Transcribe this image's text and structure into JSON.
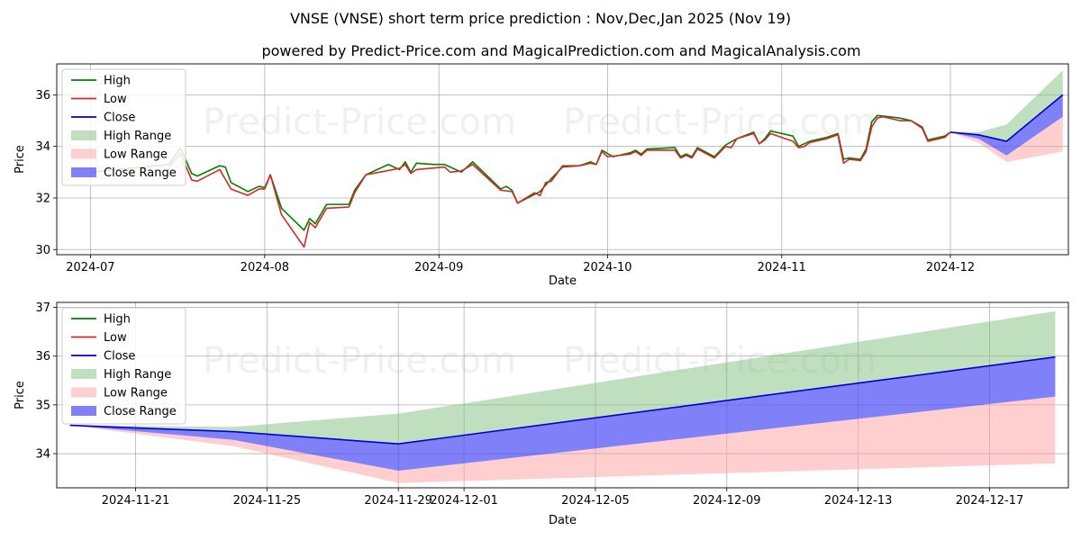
{
  "title": "VNSE (VNSE) short term price prediction : Nov,Dec,Jan 2025 (Nov 19)",
  "subtitle": "powered by Predict-Price.com and MagicalPrediction.com and MagicalAnalysis.com",
  "watermark": "Predict-Price.com",
  "colors": {
    "high": "#008000",
    "low": "#d62728",
    "close": "#0000cc",
    "high_range": "#7fbf7f",
    "low_range": "#ff9e9e",
    "close_range": "#4f4ff5",
    "grid": "#b0b0b0"
  },
  "legend": [
    {
      "key": "high",
      "label": "High",
      "kind": "line"
    },
    {
      "key": "low",
      "label": "Low",
      "kind": "line"
    },
    {
      "key": "close",
      "label": "Close",
      "kind": "line"
    },
    {
      "key": "high_range",
      "label": "High Range",
      "kind": "patch"
    },
    {
      "key": "low_range",
      "label": "Low Range",
      "kind": "patch"
    },
    {
      "key": "close_range",
      "label": "Close Range",
      "kind": "patch"
    }
  ],
  "chart_data": [
    {
      "type": "line",
      "id": "history",
      "xlabel": "Date",
      "ylabel": "Price",
      "xlim": [
        "2024-06-25",
        "2024-12-22"
      ],
      "ylim": [
        29.8,
        37.2
      ],
      "yticks": [
        30,
        32,
        34,
        36
      ],
      "xticks": [
        "2024-07-01",
        "2024-08-01",
        "2024-09-01",
        "2024-10-01",
        "2024-11-01",
        "2024-12-01"
      ],
      "xticklabels": [
        "2024-07",
        "2024-08",
        "2024-09",
        "2024-10",
        "2024-11",
        "2024-12"
      ],
      "legend_position": "upper-left",
      "series": [
        {
          "name": "High",
          "key": "high",
          "points": [
            [
              "2024-07-01",
              33.0
            ],
            [
              "2024-07-15",
              33.3
            ],
            [
              "2024-07-17",
              33.95
            ],
            [
              "2024-07-19",
              32.95
            ],
            [
              "2024-07-20",
              32.85
            ],
            [
              "2024-07-24",
              33.25
            ],
            [
              "2024-07-25",
              33.2
            ],
            [
              "2024-07-26",
              32.6
            ],
            [
              "2024-07-29",
              32.25
            ],
            [
              "2024-07-31",
              32.45
            ],
            [
              "2024-08-01",
              32.4
            ],
            [
              "2024-08-02",
              32.9
            ],
            [
              "2024-08-04",
              31.6
            ],
            [
              "2024-08-08",
              30.75
            ],
            [
              "2024-08-09",
              31.2
            ],
            [
              "2024-08-10",
              31.0
            ],
            [
              "2024-08-12",
              31.75
            ],
            [
              "2024-08-16",
              31.75
            ],
            [
              "2024-08-17",
              32.3
            ],
            [
              "2024-08-19",
              32.9
            ],
            [
              "2024-08-23",
              33.3
            ],
            [
              "2024-08-25",
              33.1
            ],
            [
              "2024-08-26",
              33.4
            ],
            [
              "2024-08-27",
              33.0
            ],
            [
              "2024-08-28",
              33.35
            ],
            [
              "2024-08-31",
              33.3
            ],
            [
              "2024-09-02",
              33.3
            ],
            [
              "2024-09-05",
              33.0
            ],
            [
              "2024-09-07",
              33.4
            ],
            [
              "2024-09-12",
              32.35
            ],
            [
              "2024-09-13",
              32.45
            ],
            [
              "2024-09-14",
              32.3
            ],
            [
              "2024-09-15",
              31.8
            ],
            [
              "2024-09-19",
              32.25
            ],
            [
              "2024-09-21",
              32.75
            ],
            [
              "2024-09-23",
              33.2
            ],
            [
              "2024-09-26",
              33.25
            ],
            [
              "2024-09-28",
              33.4
            ],
            [
              "2024-09-29",
              33.3
            ],
            [
              "2024-09-30",
              33.85
            ],
            [
              "2024-10-02",
              33.6
            ],
            [
              "2024-10-05",
              33.75
            ],
            [
              "2024-10-06",
              33.85
            ],
            [
              "2024-10-07",
              33.7
            ],
            [
              "2024-10-08",
              33.9
            ],
            [
              "2024-10-13",
              33.95
            ],
            [
              "2024-10-14",
              33.6
            ],
            [
              "2024-10-15",
              33.7
            ],
            [
              "2024-10-16",
              33.6
            ],
            [
              "2024-10-17",
              33.95
            ],
            [
              "2024-10-20",
              33.6
            ],
            [
              "2024-10-22",
              34.05
            ],
            [
              "2024-10-24",
              34.3
            ],
            [
              "2024-10-27",
              34.55
            ],
            [
              "2024-10-28",
              34.1
            ],
            [
              "2024-10-29",
              34.3
            ],
            [
              "2024-10-30",
              34.6
            ],
            [
              "2024-11-03",
              34.4
            ],
            [
              "2024-11-04",
              34.0
            ],
            [
              "2024-11-05",
              34.1
            ],
            [
              "2024-11-06",
              34.2
            ],
            [
              "2024-11-09",
              34.35
            ],
            [
              "2024-11-11",
              34.5
            ],
            [
              "2024-11-12",
              33.5
            ],
            [
              "2024-11-13",
              33.55
            ],
            [
              "2024-11-15",
              33.5
            ],
            [
              "2024-11-16",
              33.9
            ],
            [
              "2024-11-17",
              34.95
            ],
            [
              "2024-11-18",
              35.2
            ],
            [
              "2024-11-20",
              35.15
            ],
            [
              "2024-11-22",
              35.1
            ],
            [
              "2024-11-24",
              35.0
            ],
            [
              "2024-11-26",
              34.75
            ],
            [
              "2024-11-27",
              34.25
            ],
            [
              "2024-11-29",
              34.35
            ],
            [
              "2024-11-30",
              34.4
            ],
            [
              "2024-12-01",
              34.55
            ]
          ]
        },
        {
          "name": "Low",
          "key": "low",
          "points": [
            [
              "2024-07-15",
              33.2
            ],
            [
              "2024-07-17",
              33.75
            ],
            [
              "2024-07-19",
              32.7
            ],
            [
              "2024-07-20",
              32.65
            ],
            [
              "2024-07-24",
              33.1
            ],
            [
              "2024-07-26",
              32.35
            ],
            [
              "2024-07-29",
              32.1
            ],
            [
              "2024-07-31",
              32.35
            ],
            [
              "2024-08-01",
              32.35
            ],
            [
              "2024-08-02",
              32.9
            ],
            [
              "2024-08-04",
              31.35
            ],
            [
              "2024-08-08",
              30.1
            ],
            [
              "2024-08-09",
              31.05
            ],
            [
              "2024-08-10",
              30.85
            ],
            [
              "2024-08-12",
              31.6
            ],
            [
              "2024-08-16",
              31.65
            ],
            [
              "2024-08-17",
              32.2
            ],
            [
              "2024-08-19",
              32.9
            ],
            [
              "2024-08-25",
              33.15
            ],
            [
              "2024-08-26",
              33.3
            ],
            [
              "2024-08-27",
              32.95
            ],
            [
              "2024-08-28",
              33.1
            ],
            [
              "2024-09-02",
              33.2
            ],
            [
              "2024-09-03",
              33.0
            ],
            [
              "2024-09-05",
              33.05
            ],
            [
              "2024-09-07",
              33.3
            ],
            [
              "2024-09-12",
              32.3
            ],
            [
              "2024-09-14",
              32.25
            ],
            [
              "2024-09-15",
              31.8
            ],
            [
              "2024-09-18",
              32.2
            ],
            [
              "2024-09-19",
              32.1
            ],
            [
              "2024-09-20",
              32.6
            ],
            [
              "2024-09-21",
              32.65
            ],
            [
              "2024-09-23",
              33.25
            ],
            [
              "2024-09-26",
              33.25
            ],
            [
              "2024-09-28",
              33.35
            ],
            [
              "2024-09-29",
              33.3
            ],
            [
              "2024-09-30",
              33.8
            ],
            [
              "2024-10-01",
              33.6
            ],
            [
              "2024-10-05",
              33.7
            ],
            [
              "2024-10-06",
              33.8
            ],
            [
              "2024-10-07",
              33.65
            ],
            [
              "2024-10-08",
              33.85
            ],
            [
              "2024-10-13",
              33.85
            ],
            [
              "2024-10-14",
              33.55
            ],
            [
              "2024-10-15",
              33.65
            ],
            [
              "2024-10-16",
              33.55
            ],
            [
              "2024-10-17",
              33.9
            ],
            [
              "2024-10-20",
              33.55
            ],
            [
              "2024-10-22",
              34.0
            ],
            [
              "2024-10-23",
              33.95
            ],
            [
              "2024-10-24",
              34.3
            ],
            [
              "2024-10-27",
              34.5
            ],
            [
              "2024-10-28",
              34.1
            ],
            [
              "2024-10-29",
              34.25
            ],
            [
              "2024-10-30",
              34.5
            ],
            [
              "2024-11-03",
              34.2
            ],
            [
              "2024-11-04",
              33.95
            ],
            [
              "2024-11-05",
              34.0
            ],
            [
              "2024-11-06",
              34.15
            ],
            [
              "2024-11-09",
              34.3
            ],
            [
              "2024-11-11",
              34.45
            ],
            [
              "2024-11-12",
              33.35
            ],
            [
              "2024-11-13",
              33.5
            ],
            [
              "2024-11-15",
              33.45
            ],
            [
              "2024-11-16",
              33.8
            ],
            [
              "2024-11-17",
              34.75
            ],
            [
              "2024-11-18",
              35.1
            ],
            [
              "2024-11-19",
              35.15
            ],
            [
              "2024-11-22",
              35.0
            ],
            [
              "2024-11-24",
              35.0
            ],
            [
              "2024-11-26",
              34.7
            ],
            [
              "2024-11-27",
              34.2
            ],
            [
              "2024-11-29",
              34.3
            ],
            [
              "2024-11-30",
              34.35
            ],
            [
              "2024-12-01",
              34.55
            ]
          ]
        },
        {
          "name": "Close",
          "key": "close",
          "points": [
            [
              "2024-12-01",
              34.55
            ],
            [
              "2024-12-06",
              34.45
            ],
            [
              "2024-12-11",
              34.2
            ],
            [
              "2024-12-21",
              36.0
            ]
          ]
        }
      ],
      "ranges": [
        {
          "name": "High Range",
          "key": "high_range",
          "upper": [
            [
              "2024-12-01",
              34.55
            ],
            [
              "2024-12-06",
              34.55
            ],
            [
              "2024-12-11",
              34.85
            ],
            [
              "2024-12-21",
              36.95
            ]
          ],
          "lower": [
            [
              "2024-12-01",
              34.55
            ],
            [
              "2024-12-06",
              34.45
            ],
            [
              "2024-12-11",
              34.2
            ],
            [
              "2024-12-21",
              36.0
            ]
          ]
        },
        {
          "name": "Low Range",
          "key": "low_range",
          "upper": [
            [
              "2024-12-01",
              34.55
            ],
            [
              "2024-12-06",
              34.3
            ],
            [
              "2024-12-11",
              33.65
            ],
            [
              "2024-12-21",
              35.15
            ]
          ],
          "lower": [
            [
              "2024-12-01",
              34.55
            ],
            [
              "2024-12-06",
              34.15
            ],
            [
              "2024-12-11",
              33.4
            ],
            [
              "2024-12-21",
              33.8
            ]
          ]
        },
        {
          "name": "Close Range",
          "key": "close_range",
          "upper": [
            [
              "2024-12-01",
              34.55
            ],
            [
              "2024-12-06",
              34.45
            ],
            [
              "2024-12-11",
              34.2
            ],
            [
              "2024-12-21",
              36.0
            ]
          ],
          "lower": [
            [
              "2024-12-01",
              34.55
            ],
            [
              "2024-12-06",
              34.3
            ],
            [
              "2024-12-11",
              33.65
            ],
            [
              "2024-12-21",
              35.15
            ]
          ]
        }
      ]
    },
    {
      "type": "line",
      "id": "forecast",
      "xlabel": "Date",
      "ylabel": "Price",
      "xlim": [
        "2024-11-18.6",
        "2024-12-19.4"
      ],
      "ylim": [
        33.3,
        37.1
      ],
      "yticks": [
        34,
        35,
        36,
        37
      ],
      "xticks": [
        "2024-11-21",
        "2024-11-25",
        "2024-11-29",
        "2024-12-01",
        "2024-12-05",
        "2024-12-09",
        "2024-12-13",
        "2024-12-17"
      ],
      "xticklabels": [
        "2024-11-21",
        "2024-11-25",
        "2024-11-29",
        "2024-12-01",
        "2024-12-05",
        "2024-12-09",
        "2024-12-13",
        "2024-12-17"
      ],
      "legend_position": "upper-left",
      "series": [
        {
          "name": "Close",
          "key": "close",
          "points": [
            [
              "2024-11-19",
              34.58
            ],
            [
              "2024-11-24",
              34.45
            ],
            [
              "2024-11-29",
              34.2
            ],
            [
              "2024-12-19",
              35.98
            ]
          ]
        }
      ],
      "ranges": [
        {
          "name": "High Range",
          "key": "high_range",
          "upper": [
            [
              "2024-11-19",
              34.58
            ],
            [
              "2024-11-24",
              34.55
            ],
            [
              "2024-11-29",
              34.82
            ],
            [
              "2024-12-19",
              36.92
            ]
          ],
          "lower": [
            [
              "2024-11-19",
              34.58
            ],
            [
              "2024-11-24",
              34.45
            ],
            [
              "2024-11-29",
              34.2
            ],
            [
              "2024-12-19",
              35.98
            ]
          ]
        },
        {
          "name": "Low Range",
          "key": "low_range",
          "upper": [
            [
              "2024-11-19",
              34.58
            ],
            [
              "2024-11-24",
              34.28
            ],
            [
              "2024-11-29",
              33.65
            ],
            [
              "2024-12-19",
              35.17
            ]
          ],
          "lower": [
            [
              "2024-11-19",
              34.58
            ],
            [
              "2024-11-24",
              34.15
            ],
            [
              "2024-11-29",
              33.4
            ],
            [
              "2024-12-19",
              33.8
            ]
          ]
        },
        {
          "name": "Close Range",
          "key": "close_range",
          "upper": [
            [
              "2024-11-19",
              34.58
            ],
            [
              "2024-11-24",
              34.45
            ],
            [
              "2024-11-29",
              34.2
            ],
            [
              "2024-12-19",
              35.98
            ]
          ],
          "lower": [
            [
              "2024-11-19",
              34.58
            ],
            [
              "2024-11-24",
              34.28
            ],
            [
              "2024-11-29",
              33.65
            ],
            [
              "2024-12-19",
              35.17
            ]
          ]
        }
      ]
    }
  ]
}
